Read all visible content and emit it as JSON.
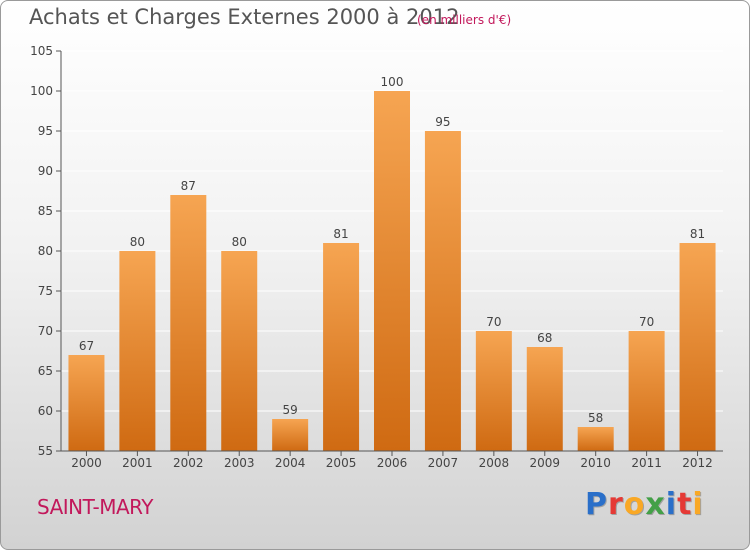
{
  "title": "Achats et Charges Externes 2000 à 2012",
  "subtitle": "(en milliers d'€)",
  "commune": "SAINT-MARY",
  "logo": {
    "letters": [
      "P",
      "r",
      "o",
      "x",
      "i",
      "t",
      "i"
    ],
    "colors": [
      "#2a6fc9",
      "#e53935",
      "#f9a825",
      "#43a047",
      "#2a6fc9",
      "#e53935",
      "#f9a825"
    ]
  },
  "colors": {
    "bar_top": "#f6a552",
    "bar_bottom": "#cf6a12",
    "axis": "#555555",
    "grid": "#ffffff"
  },
  "chart_data": {
    "type": "bar",
    "categories": [
      "2000",
      "2001",
      "2002",
      "2003",
      "2004",
      "2005",
      "2006",
      "2007",
      "2008",
      "2009",
      "2010",
      "2011",
      "2012"
    ],
    "values": [
      67,
      80,
      87,
      80,
      59,
      81,
      100,
      95,
      70,
      68,
      58,
      70,
      81
    ],
    "ylim": [
      55,
      105
    ],
    "yticks": [
      55,
      60,
      65,
      70,
      75,
      80,
      85,
      90,
      95,
      100,
      105
    ],
    "grid": true
  }
}
